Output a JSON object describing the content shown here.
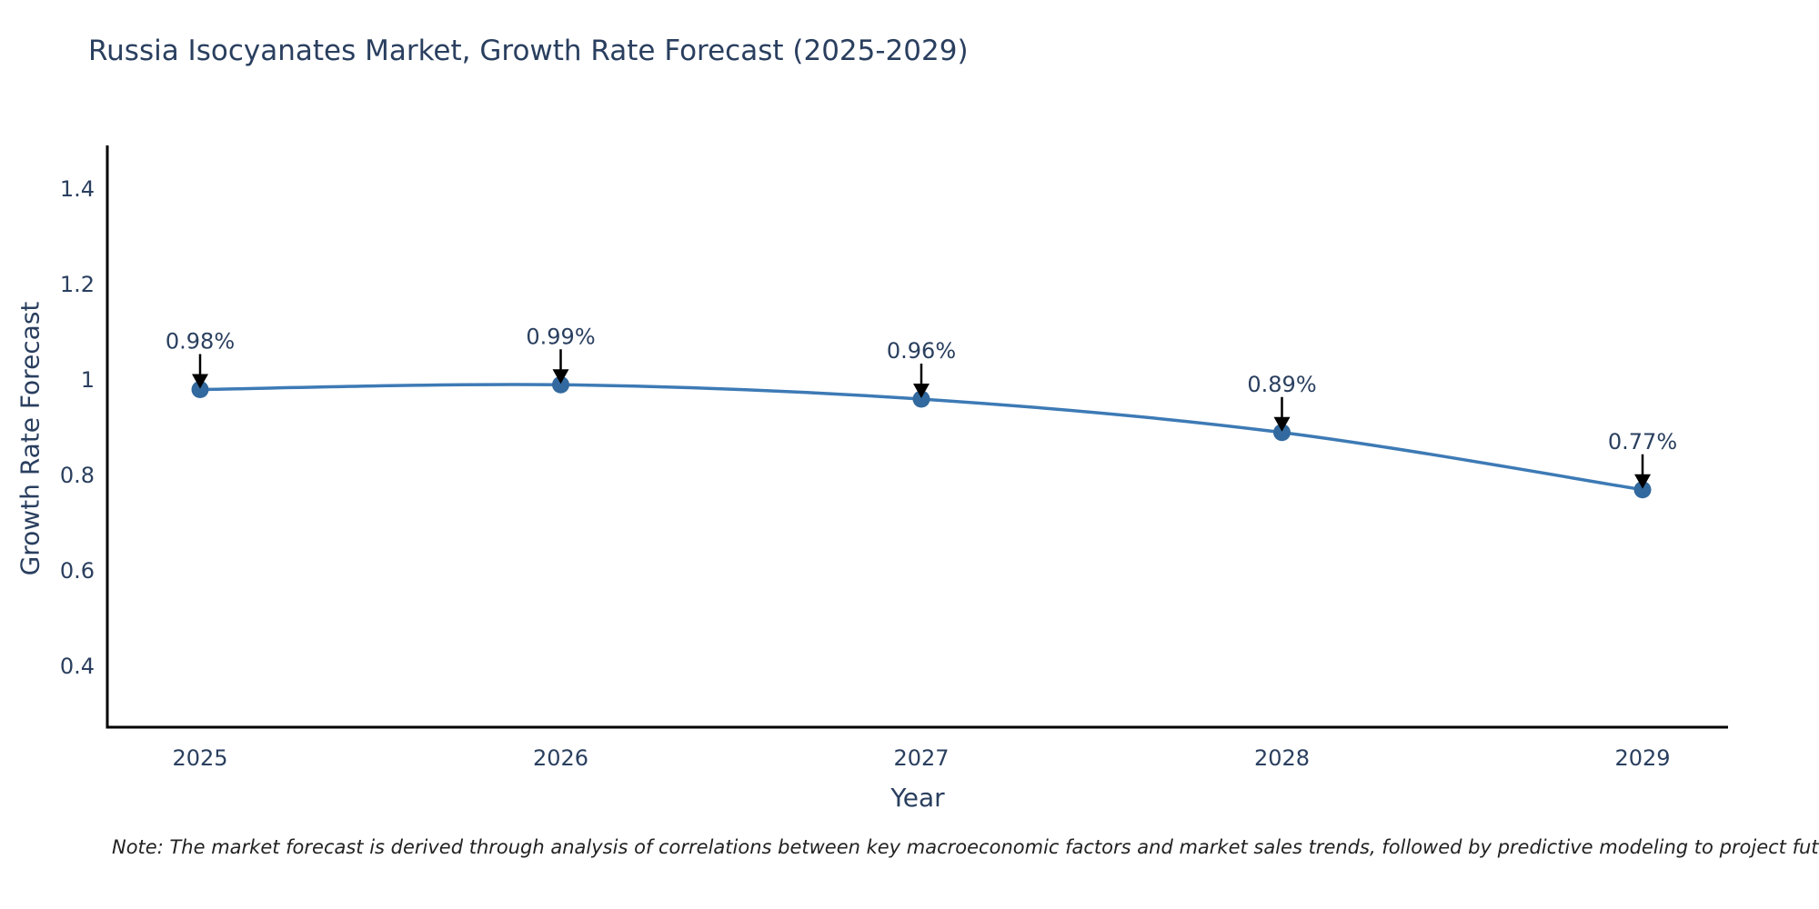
{
  "title": "Russia Isocyanates Market, Growth Rate Forecast (2025-2029)",
  "note": "Note: The market forecast is derived through analysis of correlations between key macroeconomic factors and market sales trends, followed by predictive modeling to project future sales",
  "chart_data": {
    "type": "line",
    "title": "Russia Isocyanates Market, Growth Rate Forecast (2025-2029)",
    "x": [
      "2025",
      "2026",
      "2027",
      "2028",
      "2029"
    ],
    "values": [
      0.98,
      0.99,
      0.96,
      0.89,
      0.77
    ],
    "point_labels": [
      "0.98%",
      "0.99%",
      "0.96%",
      "0.89%",
      "0.77%"
    ],
    "xlabel": "Year",
    "ylabel": "Growth Rate Forecast",
    "yticks": [
      1.4,
      1.2,
      1,
      0.8,
      0.6,
      0.4
    ],
    "ytick_labels": [
      "1.4",
      "1.2",
      "1",
      "0.8",
      "0.6",
      "0.4"
    ],
    "ylim": [
      0.272,
      1.491
    ],
    "grid": false,
    "legend": "none",
    "line_shape": "spline",
    "line_color": "#3d7ab5",
    "marker_color": "#32699e",
    "axis_color": "#000000",
    "text_color": "#2a3f5f",
    "annotation_arrow_color": "#000000"
  }
}
